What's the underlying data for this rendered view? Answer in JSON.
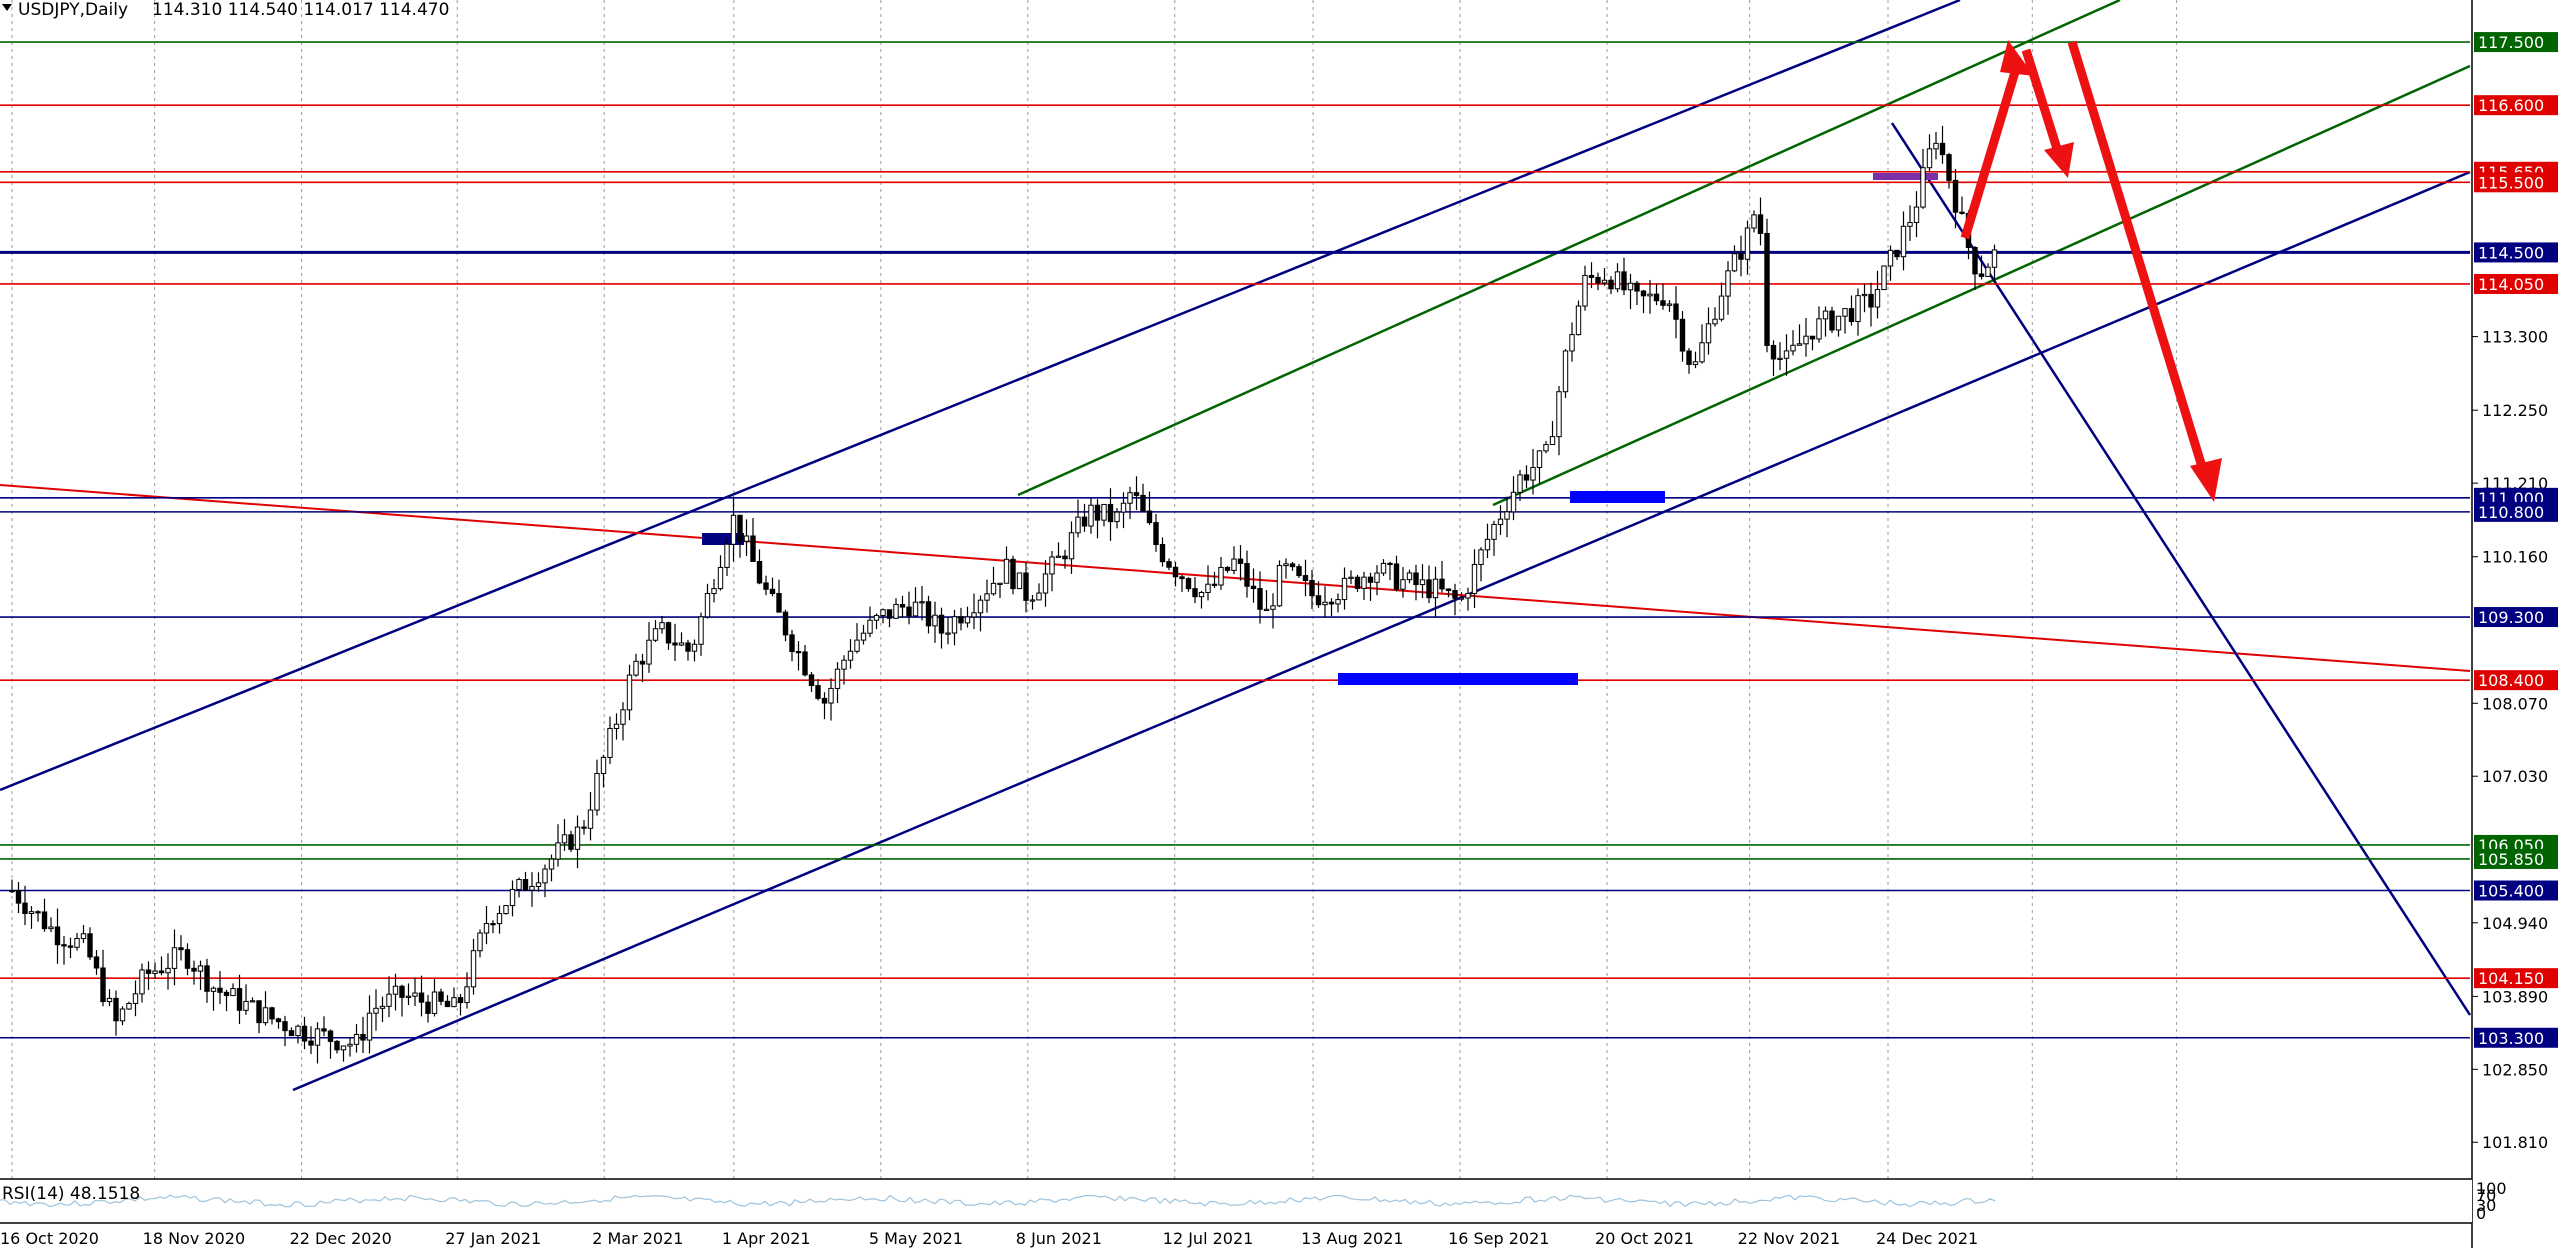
{
  "header": {
    "symbol": "USDJPY,Daily",
    "ohlc": "114.310 114.540 114.017 114.470"
  },
  "chart_data": {
    "type": "candlestick",
    "symbol": "USDJPY",
    "timeframe": "Daily",
    "last_bar": {
      "open": 114.31,
      "high": 114.54,
      "low": 114.017,
      "close": 114.47
    },
    "ylim": [
      101.3,
      118.1
    ],
    "grid": true,
    "price_ticks": [
      "113.300",
      "112.250",
      "111.210",
      "110.160",
      "108.070",
      "107.030",
      "104.940",
      "103.890",
      "102.850",
      "101.810"
    ],
    "date_ticks": [
      "16 Oct 2020",
      "18 Nov 2020",
      "22 Dec 2020",
      "27 Jan 2021",
      "2 Mar 2021",
      "1 Apr 2021",
      "5 May 2021",
      "8 Jun 2021",
      "12 Jul 2021",
      "13 Aug 2021",
      "16 Sep 2021",
      "20 Oct 2021",
      "22 Nov 2021",
      "24 Dec 2021"
    ],
    "levels": [
      {
        "price": 117.5,
        "label": "117.500",
        "color": "#006400"
      },
      {
        "price": 116.6,
        "label": "116.600",
        "color": "#e00000"
      },
      {
        "price": 115.65,
        "label": "115.650",
        "color": "#e00000"
      },
      {
        "price": 115.5,
        "label": "115.500",
        "color": "#e00000"
      },
      {
        "price": 114.5,
        "label": "114.500",
        "color": "#000080"
      },
      {
        "price": 114.05,
        "label": "114.050",
        "color": "#e00000"
      },
      {
        "price": 111.0,
        "label": "111.000",
        "color": "#000080"
      },
      {
        "price": 110.8,
        "label": "110.800",
        "color": "#000080"
      },
      {
        "price": 109.3,
        "label": "109.300",
        "color": "#000080"
      },
      {
        "price": 108.4,
        "label": "108.400",
        "color": "#e00000"
      },
      {
        "price": 106.05,
        "label": "106.050",
        "color": "#006400"
      },
      {
        "price": 105.85,
        "label": "105.850",
        "color": "#006400"
      },
      {
        "price": 105.4,
        "label": "105.400",
        "color": "#000080"
      },
      {
        "price": 104.15,
        "label": "104.150",
        "color": "#e00000"
      },
      {
        "price": 103.3,
        "label": "103.300",
        "color": "#000080"
      }
    ],
    "close_path": [
      [
        "16 Oct 2020",
        105.4
      ],
      [
        "26 Oct 2020",
        104.8
      ],
      [
        "2 Nov 2020",
        104.6
      ],
      [
        "9 Nov 2020",
        103.5
      ],
      [
        "16 Nov 2020",
        104.2
      ],
      [
        "25 Nov 2020",
        104.5
      ],
      [
        "2 Dec 2020",
        104.0
      ],
      [
        "14 Dec 2020",
        103.6
      ],
      [
        "22 Dec 2020",
        103.4
      ],
      [
        "4 Jan 2021",
        103.2
      ],
      [
        "7 Jan 2021",
        103.7
      ],
      [
        "14 Jan 2021",
        103.9
      ],
      [
        "27 Jan 2021",
        103.7
      ],
      [
        "3 Feb 2021",
        105.0
      ],
      [
        "10 Feb 2021",
        105.4
      ],
      [
        "17 Feb 2021",
        105.8
      ],
      [
        "25 Feb 2021",
        106.3
      ],
      [
        "2 Mar 2021",
        107.3
      ],
      [
        "9 Mar 2021",
        108.6
      ],
      [
        "15 Mar 2021",
        109.1
      ],
      [
        "22 Mar 2021",
        108.8
      ],
      [
        "31 Mar 2021",
        110.6
      ],
      [
        "1 Apr 2021",
        110.7
      ],
      [
        "8 Apr 2021",
        109.7
      ],
      [
        "15 Apr 2021",
        108.9
      ],
      [
        "22 Apr 2021",
        108.1
      ],
      [
        "28 Apr 2021",
        108.9
      ],
      [
        "5 May 2021",
        109.3
      ],
      [
        "12 May 2021",
        109.5
      ],
      [
        "19 May 2021",
        109.1
      ],
      [
        "26 May 2021",
        109.5
      ],
      [
        "3 Jun 2021",
        110.0
      ],
      [
        "8 Jun 2021",
        109.6
      ],
      [
        "15 Jun 2021",
        110.1
      ],
      [
        "22 Jun 2021",
        110.8
      ],
      [
        "29 Jun 2021",
        110.7
      ],
      [
        "2 Jul 2021",
        111.1
      ],
      [
        "8 Jul 2021",
        110.3
      ],
      [
        "12 Jul 2021",
        110.0
      ],
      [
        "19 Jul 2021",
        109.6
      ],
      [
        "26 Jul 2021",
        110.1
      ],
      [
        "2 Aug 2021",
        109.3
      ],
      [
        "6 Aug 2021",
        110.0
      ],
      [
        "13 Aug 2021",
        109.6
      ],
      [
        "20 Aug 2021",
        109.7
      ],
      [
        "27 Aug 2021",
        110.0
      ],
      [
        "3 Sep 2021",
        109.8
      ],
      [
        "10 Sep 2021",
        109.7
      ],
      [
        "16 Sep 2021",
        109.5
      ],
      [
        "23 Sep 2021",
        110.5
      ],
      [
        "30 Sep 2021",
        111.3
      ],
      [
        "6 Oct 2021",
        111.6
      ],
      [
        "11 Oct 2021",
        113.2
      ],
      [
        "15 Oct 2021",
        114.1
      ],
      [
        "20 Oct 2021",
        114.2
      ],
      [
        "27 Oct 2021",
        113.8
      ],
      [
        "3 Nov 2021",
        113.9
      ],
      [
        "9 Nov 2021",
        112.8
      ],
      [
        "15 Nov 2021",
        113.9
      ],
      [
        "22 Nov 2021",
        114.8
      ],
      [
        "24 Nov 2021",
        115.3
      ],
      [
        "26 Nov 2021",
        113.3
      ],
      [
        "30 Nov 2021",
        112.9
      ],
      [
        "6 Dec 2021",
        113.4
      ],
      [
        "13 Dec 2021",
        113.6
      ],
      [
        "20 Dec 2021",
        113.8
      ],
      [
        "24 Dec 2021",
        114.3
      ],
      [
        "30 Dec 2021",
        115.1
      ],
      [
        "4 Jan 2022",
        116.2
      ],
      [
        "7 Jan 2022",
        115.6
      ],
      [
        "12 Jan 2022",
        114.5
      ],
      [
        "14 Jan 2022",
        114.2
      ],
      [
        "18 Jan 2022",
        114.5
      ]
    ],
    "rsi": {
      "label": "RSI(14) 48.1518",
      "ticks": [
        "100",
        "70",
        "30",
        "0"
      ]
    }
  }
}
